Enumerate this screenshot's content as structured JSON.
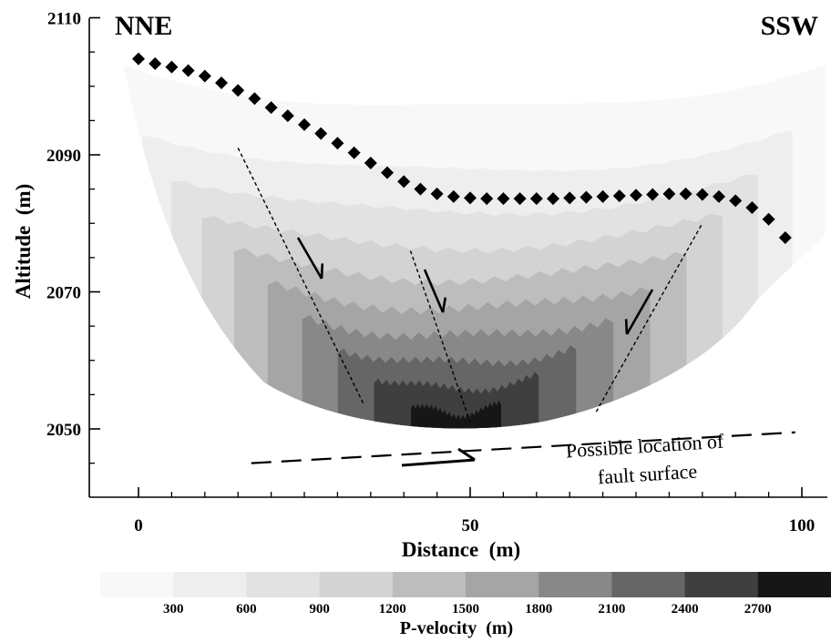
{
  "chart_data": {
    "type": "heatmap",
    "title": "",
    "corner_labels": {
      "left": "NNE",
      "right": "SSW"
    },
    "xlabel": "Distance  (m)",
    "ylabel": "Altitude  (m)",
    "xlim": [
      -5,
      104
    ],
    "ylim": [
      2040,
      2110
    ],
    "x_ticks": [
      0,
      50,
      100
    ],
    "y_ticks": [
      2050,
      2070,
      2090,
      2110
    ],
    "grid": false,
    "colorbar": {
      "label": "P-velocity  (m)",
      "levels": [
        300,
        600,
        900,
        1200,
        1500,
        1800,
        2100,
        2400,
        2700
      ],
      "colors": [
        "#f8f8f8",
        "#eeeeee",
        "#e2e2e2",
        "#d3d3d3",
        "#bdbdbd",
        "#a5a5a5",
        "#888888",
        "#666666",
        "#3f3f3f",
        "#161616"
      ]
    },
    "topography_markers": {
      "x": [
        0,
        2.5,
        5,
        7.5,
        10,
        12.5,
        15,
        17.5,
        20,
        22.5,
        25,
        27.5,
        30,
        32.5,
        35,
        37.5,
        40,
        42.5,
        45,
        47.5,
        50,
        52.5,
        55,
        57.5,
        60,
        62.5,
        65,
        67.5,
        70,
        72.5,
        75,
        77.5,
        80,
        82.5,
        85,
        87.5,
        90,
        92.5,
        95,
        97.5
      ],
      "y": [
        2104,
        2103.3,
        2102.8,
        2102.3,
        2101.5,
        2100.5,
        2099.4,
        2098.2,
        2096.9,
        2095.7,
        2094.4,
        2093.1,
        2091.7,
        2090.3,
        2088.8,
        2087.4,
        2086.1,
        2085,
        2084.3,
        2083.9,
        2083.7,
        2083.6,
        2083.6,
        2083.6,
        2083.6,
        2083.6,
        2083.7,
        2083.8,
        2083.9,
        2084,
        2084.1,
        2084.2,
        2084.3,
        2084.3,
        2084.2,
        2083.9,
        2083.3,
        2082.3,
        2080.6,
        2077.9
      ]
    },
    "interpreted_faults": [
      {
        "x": [
          15,
          34
        ],
        "y": [
          2091,
          2053.5
        ],
        "arrow": "down"
      },
      {
        "x": [
          41,
          50
        ],
        "y": [
          2076,
          2051
        ]
      },
      {
        "x": [
          69,
          85
        ],
        "y": [
          2052.5,
          2080
        ],
        "arrow": "down"
      }
    ],
    "fault_surface": {
      "x": [
        17,
        99
      ],
      "y": [
        2045,
        2049.5
      ],
      "arrow": "right",
      "annotation": [
        "Possible location of",
        "fault surface"
      ]
    }
  }
}
